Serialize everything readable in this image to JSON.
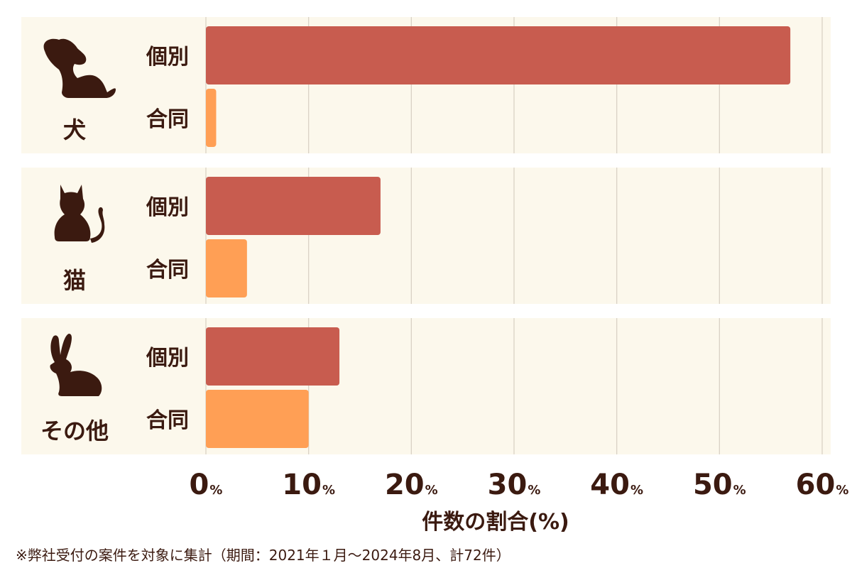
{
  "colors": {
    "individual": "#c85c4f",
    "joint": "#ff9f55",
    "panel_bg": "#fcf8ec",
    "text": "#3b1a10",
    "grid": "#d9d2c5"
  },
  "chart_data": {
    "type": "bar",
    "orientation": "horizontal",
    "groups": [
      {
        "label": "犬",
        "icon": "dog-icon"
      },
      {
        "label": "猫",
        "icon": "cat-icon"
      },
      {
        "label": "その他",
        "icon": "rabbit-icon"
      }
    ],
    "bar_labels": [
      "個別",
      "合同"
    ],
    "series": [
      {
        "name": "個別",
        "values": [
          56.9,
          17.0,
          13.0
        ]
      },
      {
        "name": "合同",
        "values": [
          1.0,
          4.0,
          10.0
        ]
      }
    ],
    "xlim": [
      0,
      60
    ],
    "xticks": [
      "0",
      "10",
      "20",
      "30",
      "40",
      "50",
      "60"
    ],
    "tick_suffix": "%",
    "xlabel": "件数の割合(%)",
    "grid": true
  },
  "footnote": "※弊社受付の案件を対象に集計（期間：2021年１月～2024年8月、計72件）"
}
